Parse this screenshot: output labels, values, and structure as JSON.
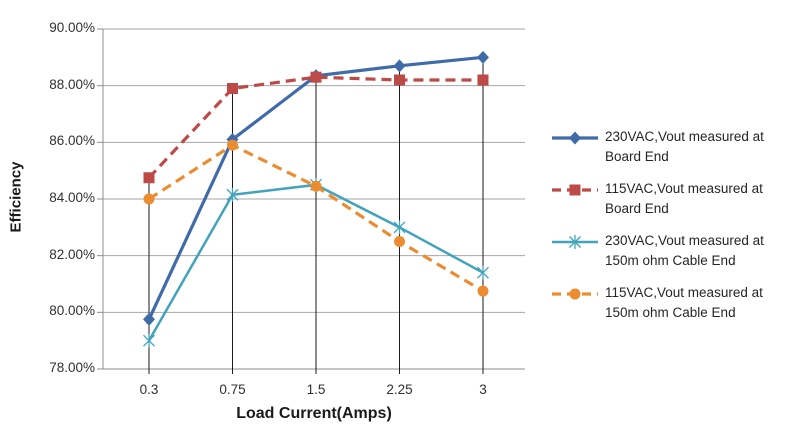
{
  "chart_data": {
    "type": "line",
    "title": "",
    "xlabel": "Load Current(Amps)",
    "ylabel": "Efficiency",
    "categories": [
      "0.3",
      "0.75",
      "1.5",
      "2.25",
      "3"
    ],
    "y_ticks": [
      {
        "value": 90,
        "label": "90.00%"
      },
      {
        "value": 88,
        "label": "88.00%"
      },
      {
        "value": 86,
        "label": "86.00%"
      },
      {
        "value": 84,
        "label": "84.00%"
      },
      {
        "value": 82,
        "label": "82.00%"
      },
      {
        "value": 80,
        "label": "80.00%"
      },
      {
        "value": 78,
        "label": "78.00%"
      }
    ],
    "ylim": [
      78,
      90
    ],
    "grid": {
      "horizontal": true,
      "vertical_drop_lines": true
    },
    "legend_position": "right",
    "colors": {
      "gridline": "#a6a6a6",
      "axis": "#8c8c8c",
      "drop_line": "#1a1a1a",
      "blue": "#3f6ba8",
      "red": "#be4a47",
      "teal": "#42a3bc",
      "orange": "#eb8c30"
    },
    "series": [
      {
        "name": "230VAC,Vout measured at Board End",
        "legend_lines": [
          "230VAC,Vout measured at",
          "Board End"
        ],
        "color": "#3f6ba8",
        "line_style": "solid",
        "marker": "diamond",
        "values": [
          79.75,
          86.1,
          88.35,
          88.7,
          89.0
        ]
      },
      {
        "name": "115VAC,Vout measured at Board End",
        "legend_lines": [
          "115VAC,Vout measured at",
          "Board End"
        ],
        "color": "#be4a47",
        "line_style": "dashed",
        "marker": "square",
        "values": [
          84.75,
          87.9,
          88.3,
          88.2,
          88.2
        ]
      },
      {
        "name": "230VAC,Vout measured at 150m ohm Cable End",
        "legend_lines": [
          "230VAC,Vout measured at",
          "150m ohm Cable End"
        ],
        "color": "#42a3bc",
        "line_style": "solid",
        "marker": "asterisk",
        "values": [
          79.0,
          84.15,
          84.5,
          83.0,
          81.4
        ]
      },
      {
        "name": "115VAC,Vout measured at 150m ohm Cable End",
        "legend_lines": [
          "115VAC,Vout measured at",
          "150m ohm Cable End"
        ],
        "color": "#eb8c30",
        "line_style": "dashed",
        "marker": "circle",
        "values": [
          84.0,
          85.9,
          84.45,
          82.5,
          80.75
        ]
      }
    ]
  }
}
